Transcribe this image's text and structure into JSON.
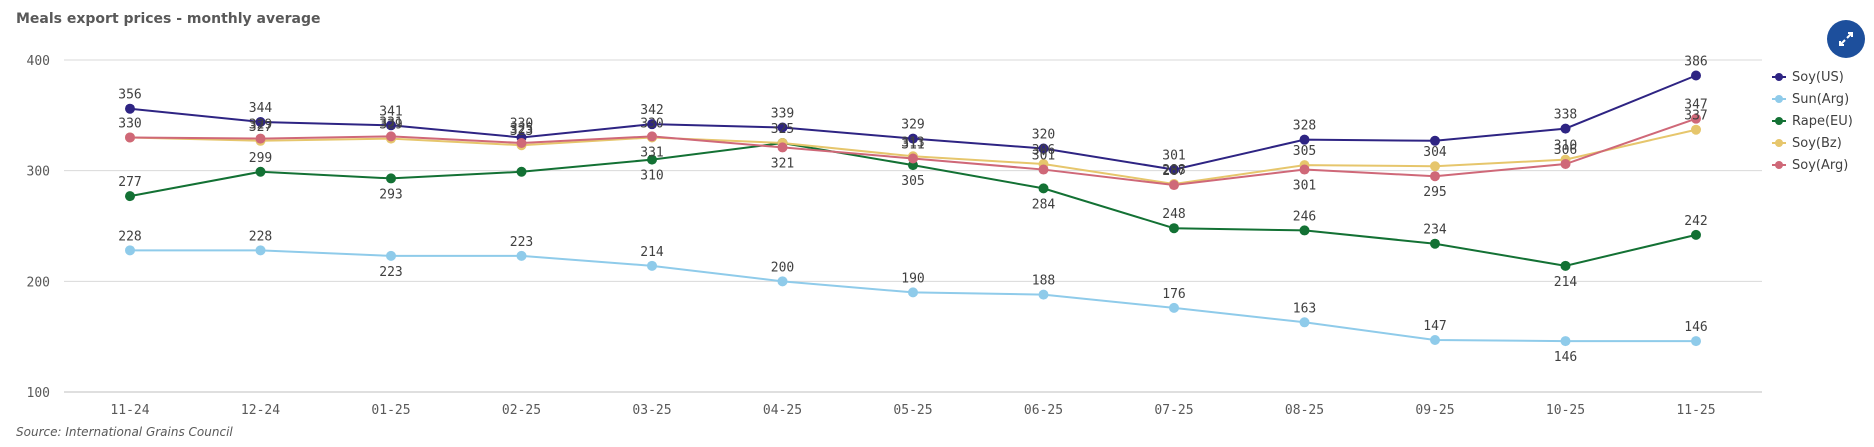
{
  "title": "Meals export prices - monthly average",
  "source": "Source: International Grains Council",
  "expand_button": {
    "icon": "expand-arrows-icon"
  },
  "chart_data": {
    "type": "line",
    "title": "Meals export prices - monthly average",
    "xlabel": "",
    "ylabel": "",
    "categories": [
      "11-24",
      "12-24",
      "01-25",
      "02-25",
      "03-25",
      "04-25",
      "05-25",
      "06-25",
      "07-25",
      "08-25",
      "09-25",
      "10-25",
      "11-25"
    ],
    "y_ticks": [
      100,
      200,
      300,
      400
    ],
    "ylim": [
      100,
      400
    ],
    "grid": true,
    "legend_position": "right",
    "series": [
      {
        "name": "Soy(US)",
        "color": "#2e2483",
        "values": [
          356,
          344,
          341,
          330,
          342,
          339,
          329,
          320,
          301,
          328,
          327,
          338,
          386
        ],
        "labels": [
          "356",
          "344",
          "341",
          "330",
          "342",
          "339",
          "329",
          "320",
          "301",
          "328",
          "",
          "338",
          "386"
        ]
      },
      {
        "name": "Sun(Arg)",
        "color": "#8fcbea",
        "values": [
          228,
          228,
          223,
          223,
          214,
          200,
          190,
          188,
          176,
          163,
          147,
          146,
          146
        ],
        "labels": [
          "228",
          "228",
          "223",
          "223",
          "214",
          "200",
          "190",
          "188",
          "176",
          "163",
          "147",
          "146",
          "146"
        ]
      },
      {
        "name": "Rape(EU)",
        "color": "#137134",
        "values": [
          277,
          299,
          293,
          299,
          310,
          325,
          305,
          284,
          248,
          246,
          234,
          214,
          242
        ],
        "labels": [
          "277",
          "299",
          "293",
          "",
          "310",
          "",
          "305",
          "284",
          "248",
          "246",
          "234",
          "214",
          "242"
        ]
      },
      {
        "name": "Soy(Bz)",
        "color": "#e6c66c",
        "values": [
          330,
          327,
          329,
          323,
          330,
          325,
          313,
          306,
          288,
          305,
          304,
          310,
          337
        ],
        "labels": [
          "",
          "327",
          "329",
          "323",
          "330",
          "325",
          "313",
          "306",
          "288",
          "305",
          "304",
          "310",
          "337"
        ]
      },
      {
        "name": "Soy(Arg)",
        "color": "#cf6878",
        "values": [
          330,
          329,
          331,
          325,
          331,
          321,
          311,
          301,
          287,
          301,
          295,
          306,
          347
        ],
        "labels": [
          "330",
          "329",
          "331",
          "325",
          "331",
          "321",
          "311",
          "301",
          "287",
          "301",
          "295",
          "306",
          "347"
        ]
      }
    ]
  }
}
